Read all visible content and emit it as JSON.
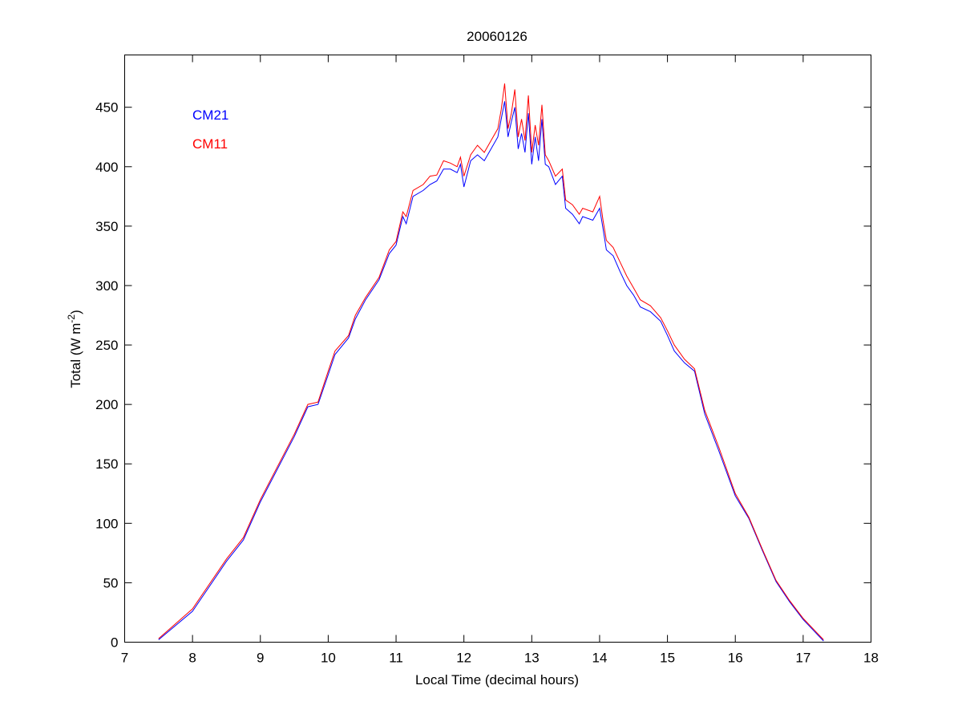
{
  "chart_data": {
    "type": "line",
    "title": "20060126",
    "xlabel": "Local Time (decimal hours)",
    "ylabel": "Total (W m",
    "ylabel_sup": "-2",
    "ylabel_end": ")",
    "xlim": [
      7,
      18
    ],
    "ylim": [
      0,
      494
    ],
    "xticks": [
      7,
      8,
      9,
      10,
      11,
      12,
      13,
      14,
      15,
      16,
      17,
      18
    ],
    "yticks": [
      0,
      50,
      100,
      150,
      200,
      250,
      300,
      350,
      400,
      450
    ],
    "grid": false,
    "legend_placement": "top-left",
    "series": [
      {
        "name": "CM21",
        "color": "#0000ff",
        "x": [
          7.5,
          8.0,
          8.5,
          8.75,
          9.0,
          9.5,
          9.7,
          9.85,
          10.0,
          10.1,
          10.3,
          10.4,
          10.55,
          10.75,
          10.9,
          11.0,
          11.1,
          11.15,
          11.25,
          11.4,
          11.5,
          11.6,
          11.7,
          11.8,
          11.9,
          11.95,
          12.0,
          12.1,
          12.2,
          12.3,
          12.4,
          12.5,
          12.55,
          12.6,
          12.65,
          12.7,
          12.75,
          12.8,
          12.85,
          12.9,
          12.95,
          13.0,
          13.05,
          13.1,
          13.15,
          13.2,
          13.25,
          13.35,
          13.45,
          13.5,
          13.6,
          13.7,
          13.75,
          13.9,
          14.0,
          14.05,
          14.1,
          14.2,
          14.3,
          14.4,
          14.5,
          14.6,
          14.75,
          14.9,
          15.0,
          15.1,
          15.25,
          15.4,
          15.55,
          15.75,
          16.0,
          16.2,
          16.4,
          16.6,
          16.8,
          17.0,
          17.3
        ],
        "y": [
          2,
          26,
          68,
          86,
          118,
          173,
          198,
          200,
          225,
          242,
          256,
          272,
          288,
          305,
          327,
          334,
          358,
          352,
          375,
          380,
          385,
          388,
          398,
          398,
          395,
          402,
          383,
          405,
          410,
          405,
          415,
          425,
          440,
          455,
          425,
          438,
          450,
          415,
          428,
          412,
          445,
          402,
          425,
          405,
          440,
          402,
          400,
          385,
          392,
          365,
          360,
          352,
          358,
          355,
          365,
          348,
          330,
          325,
          312,
          300,
          292,
          282,
          278,
          270,
          258,
          245,
          235,
          228,
          192,
          162,
          123,
          104,
          77,
          51,
          34,
          19,
          1
        ]
      },
      {
        "name": "CM11",
        "color": "#ff0000",
        "x": [
          7.5,
          8.0,
          8.5,
          8.75,
          9.0,
          9.5,
          9.7,
          9.85,
          10.0,
          10.1,
          10.3,
          10.4,
          10.55,
          10.75,
          10.9,
          11.0,
          11.1,
          11.15,
          11.25,
          11.4,
          11.5,
          11.6,
          11.7,
          11.8,
          11.9,
          11.95,
          12.0,
          12.1,
          12.2,
          12.3,
          12.4,
          12.5,
          12.55,
          12.6,
          12.65,
          12.7,
          12.75,
          12.8,
          12.85,
          12.9,
          12.95,
          13.0,
          13.05,
          13.1,
          13.15,
          13.2,
          13.25,
          13.35,
          13.45,
          13.5,
          13.6,
          13.7,
          13.75,
          13.9,
          14.0,
          14.05,
          14.1,
          14.2,
          14.3,
          14.4,
          14.5,
          14.6,
          14.75,
          14.9,
          15.0,
          15.1,
          15.25,
          15.4,
          15.55,
          15.75,
          16.0,
          16.2,
          16.4,
          16.6,
          16.8,
          17.0,
          17.3
        ],
        "y": [
          3,
          28,
          70,
          88,
          120,
          175,
          200,
          202,
          228,
          245,
          258,
          275,
          290,
          307,
          330,
          337,
          362,
          358,
          380,
          385,
          392,
          393,
          405,
          403,
          400,
          408,
          392,
          410,
          418,
          412,
          422,
          432,
          448,
          470,
          432,
          445,
          465,
          425,
          440,
          422,
          460,
          412,
          435,
          418,
          452,
          410,
          405,
          392,
          398,
          372,
          368,
          360,
          365,
          362,
          375,
          355,
          338,
          332,
          320,
          308,
          298,
          288,
          283,
          273,
          262,
          250,
          238,
          230,
          195,
          165,
          125,
          105,
          78,
          52,
          35,
          20,
          2
        ]
      }
    ]
  }
}
